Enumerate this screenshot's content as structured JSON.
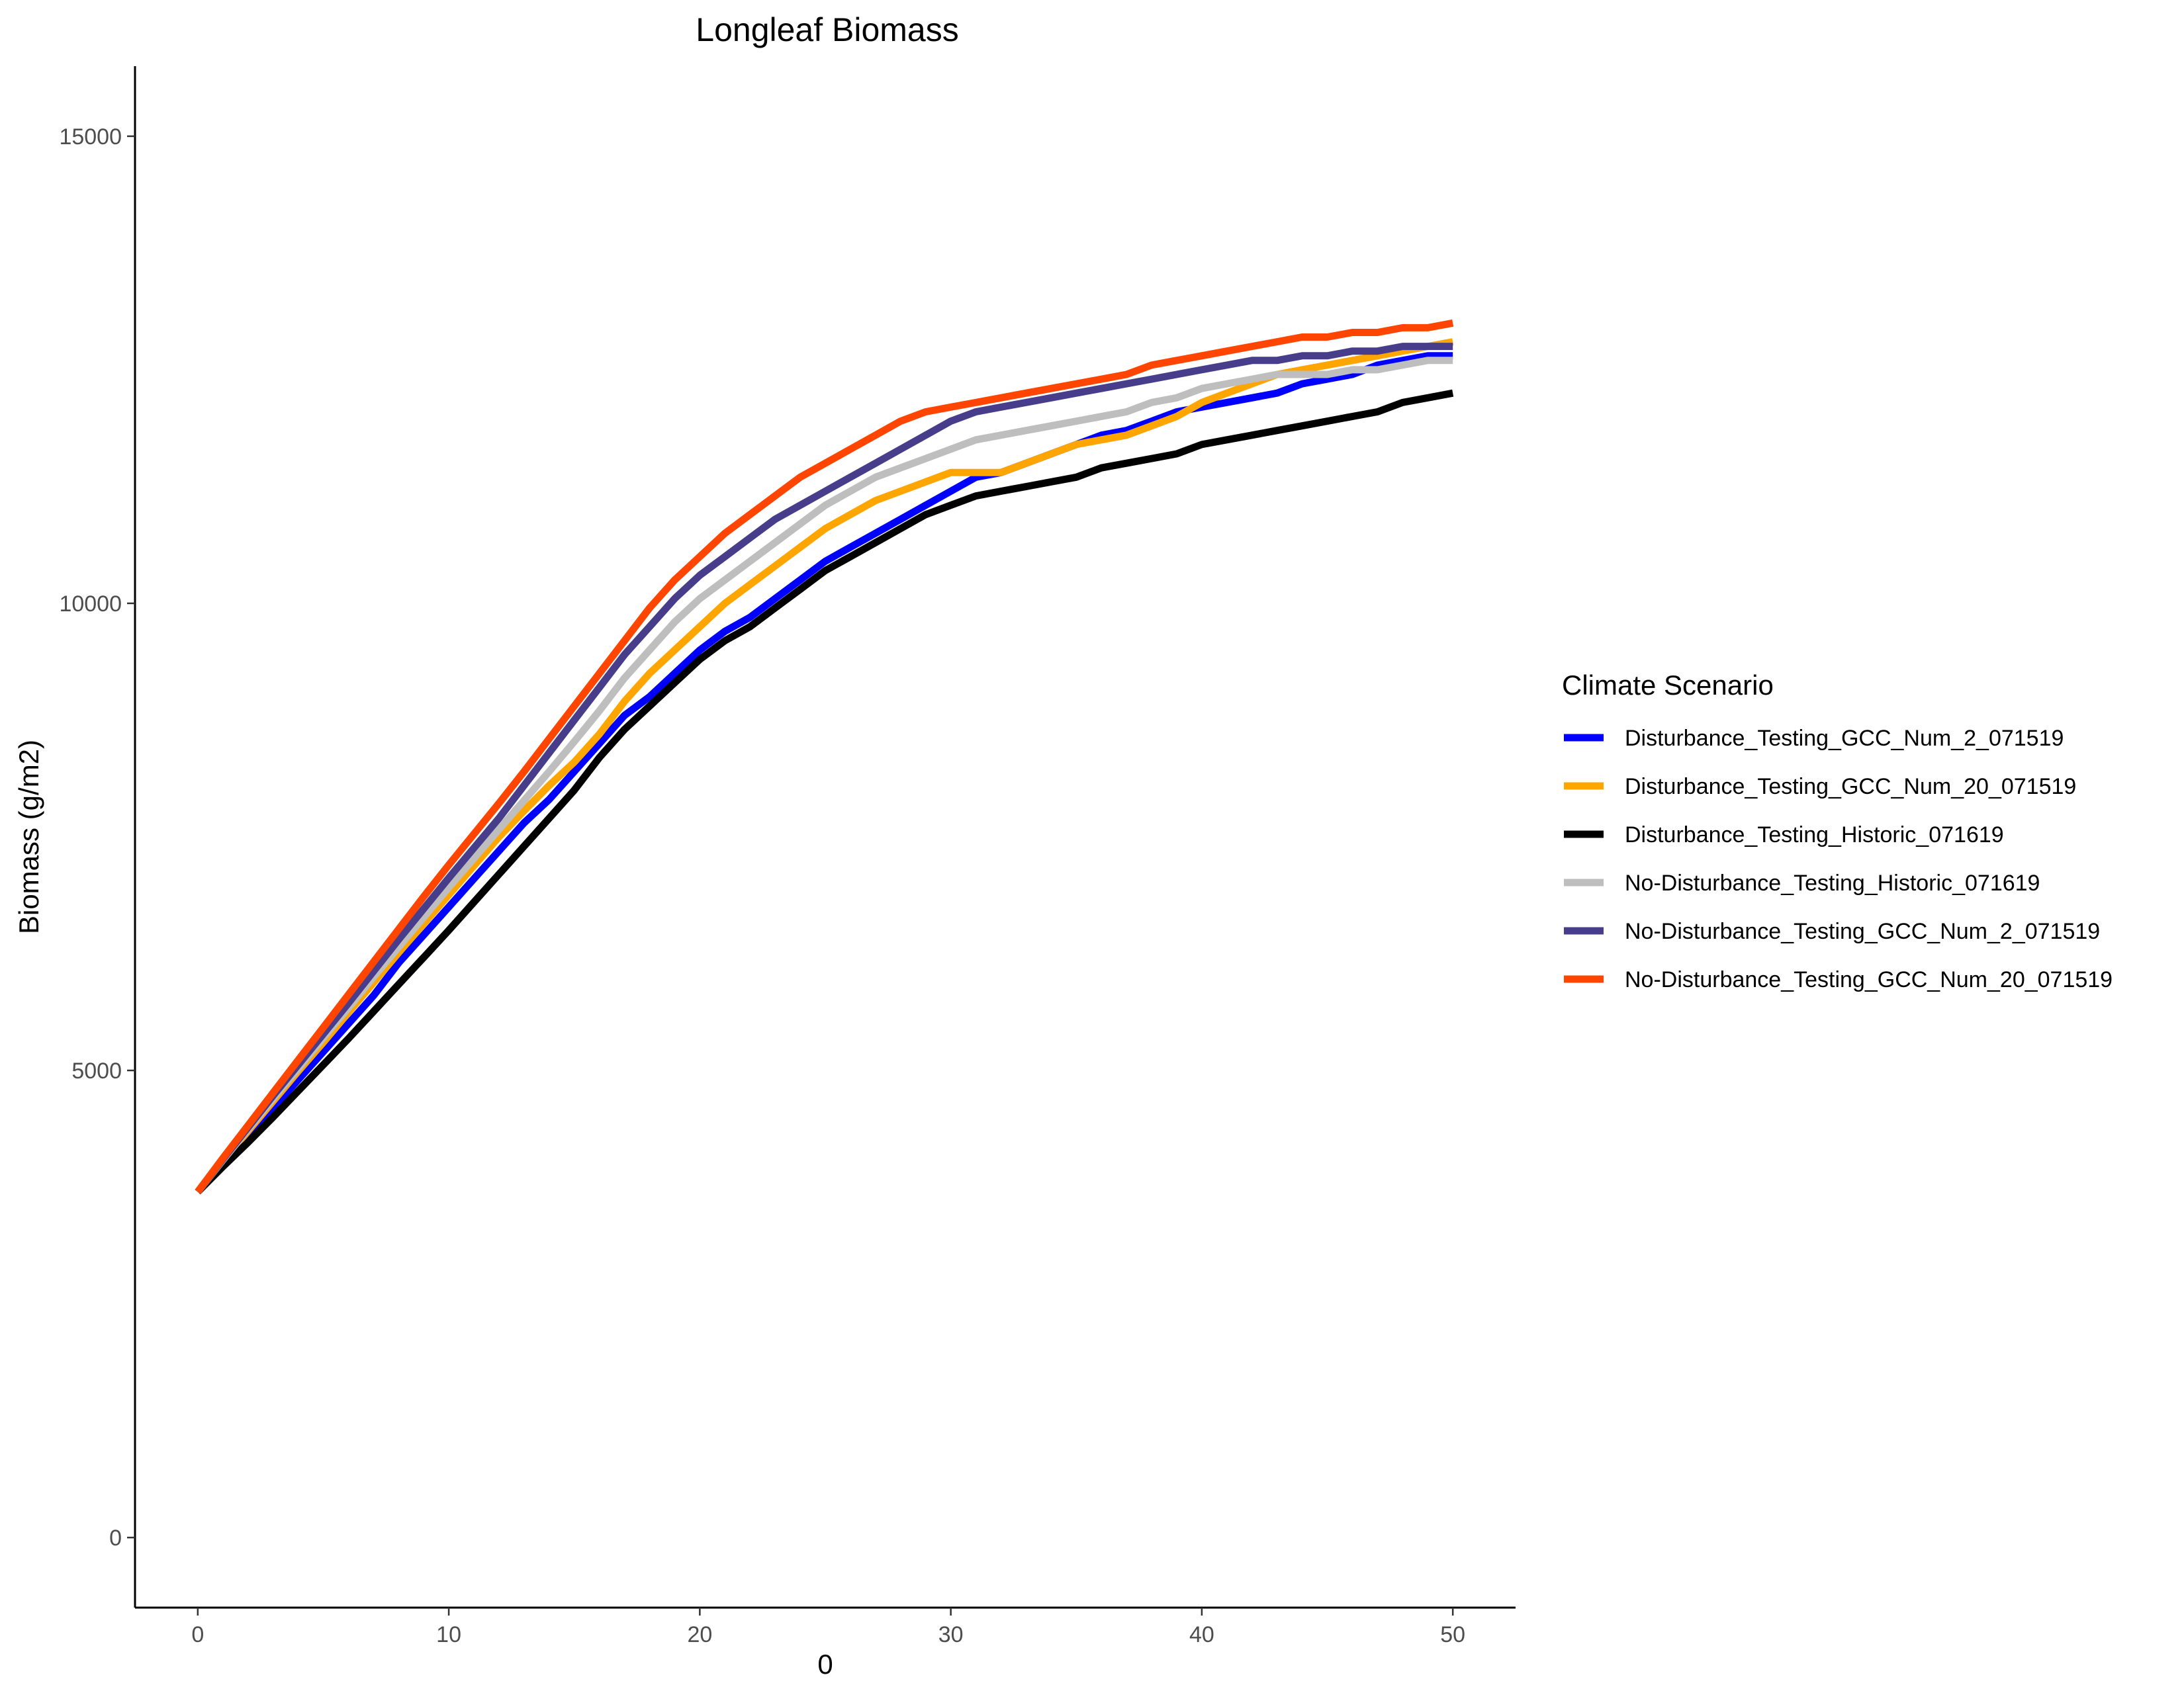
{
  "chart_data": {
    "type": "line",
    "title": "Longleaf Biomass",
    "xlabel": "0",
    "ylabel": "Biomass (g/m2)",
    "xlim": [
      -2.5,
      52.5
    ],
    "ylim": [
      -750,
      15750
    ],
    "xticks": [
      0,
      10,
      20,
      30,
      40,
      50
    ],
    "yticks": [
      0,
      5000,
      10000,
      15000
    ],
    "grid": false,
    "legend": {
      "title": "Climate Scenario",
      "position": "right"
    },
    "x": [
      0,
      1,
      2,
      3,
      4,
      5,
      6,
      7,
      8,
      9,
      10,
      11,
      12,
      13,
      14,
      15,
      16,
      17,
      18,
      19,
      20,
      21,
      22,
      23,
      24,
      25,
      26,
      27,
      28,
      29,
      30,
      31,
      32,
      33,
      34,
      35,
      36,
      37,
      38,
      39,
      40,
      41,
      42,
      43,
      44,
      45,
      46,
      47,
      48,
      49,
      50
    ],
    "series": [
      {
        "name": "Disturbance_Testing_GCC_Num_2_071519",
        "color": "#0000FF",
        "values": [
          3700,
          4000,
          4300,
          4600,
          4900,
          5200,
          5500,
          5800,
          6150,
          6450,
          6750,
          7050,
          7350,
          7650,
          7900,
          8200,
          8500,
          8800,
          9000,
          9250,
          9500,
          9700,
          9850,
          10050,
          10250,
          10450,
          10600,
          10750,
          10900,
          11050,
          11200,
          11350,
          11400,
          11500,
          11600,
          11700,
          11800,
          11850,
          11950,
          12050,
          12100,
          12150,
          12200,
          12250,
          12350,
          12400,
          12450,
          12550,
          12600,
          12650,
          12650
        ]
      },
      {
        "name": "Disturbance_Testing_GCC_Num_20_071519",
        "color": "#FFA500",
        "values": [
          3700,
          4030,
          4350,
          4670,
          4990,
          5300,
          5620,
          5940,
          6260,
          6570,
          6880,
          7190,
          7500,
          7780,
          8050,
          8300,
          8600,
          8950,
          9250,
          9500,
          9750,
          10000,
          10200,
          10400,
          10600,
          10800,
          10950,
          11100,
          11200,
          11300,
          11400,
          11400,
          11400,
          11500,
          11600,
          11700,
          11750,
          11800,
          11900,
          12000,
          12150,
          12250,
          12350,
          12450,
          12500,
          12550,
          12600,
          12650,
          12700,
          12750,
          12800
        ]
      },
      {
        "name": "Disturbance_Testing_Historic_071619",
        "color": "#000000",
        "values": [
          3700,
          3970,
          4230,
          4500,
          4780,
          5060,
          5340,
          5630,
          5920,
          6210,
          6500,
          6800,
          7100,
          7400,
          7700,
          8000,
          8350,
          8650,
          8900,
          9150,
          9400,
          9600,
          9750,
          9950,
          10150,
          10350,
          10500,
          10650,
          10800,
          10950,
          11050,
          11150,
          11200,
          11250,
          11300,
          11350,
          11450,
          11500,
          11550,
          11600,
          11700,
          11750,
          11800,
          11850,
          11900,
          11950,
          12000,
          12050,
          12150,
          12200,
          12250
        ]
      },
      {
        "name": "No-Disturbance_Testing_Historic_071619",
        "color": "#BEBEBE",
        "values": [
          3700,
          4040,
          4370,
          4700,
          5020,
          5350,
          5670,
          6000,
          6320,
          6640,
          6960,
          7270,
          7580,
          7890,
          8200,
          8520,
          8850,
          9200,
          9500,
          9800,
          10050,
          10250,
          10450,
          10650,
          10850,
          11050,
          11200,
          11350,
          11450,
          11550,
          11650,
          11750,
          11800,
          11850,
          11900,
          11950,
          12000,
          12050,
          12150,
          12200,
          12300,
          12350,
          12400,
          12450,
          12450,
          12450,
          12500,
          12500,
          12550,
          12600,
          12600
        ]
      },
      {
        "name": "No-Disturbance_Testing_GCC_Num_2_071519",
        "color": "#483D8B",
        "values": [
          3700,
          4050,
          4390,
          4730,
          5060,
          5390,
          5720,
          6060,
          6400,
          6730,
          7060,
          7380,
          7700,
          8050,
          8400,
          8750,
          9100,
          9450,
          9750,
          10050,
          10300,
          10500,
          10700,
          10900,
          11050,
          11200,
          11350,
          11500,
          11650,
          11800,
          11950,
          12050,
          12100,
          12150,
          12200,
          12250,
          12300,
          12350,
          12400,
          12450,
          12500,
          12550,
          12600,
          12600,
          12650,
          12650,
          12700,
          12700,
          12750,
          12750,
          12750
        ]
      },
      {
        "name": "No-Disturbance_Testing_GCC_Num_20_071519",
        "color": "#FF4500",
        "values": [
          3700,
          4060,
          4410,
          4760,
          5110,
          5460,
          5810,
          6160,
          6510,
          6860,
          7200,
          7530,
          7860,
          8200,
          8550,
          8900,
          9250,
          9600,
          9950,
          10250,
          10500,
          10750,
          10950,
          11150,
          11350,
          11500,
          11650,
          11800,
          11950,
          12050,
          12100,
          12150,
          12200,
          12250,
          12300,
          12350,
          12400,
          12450,
          12550,
          12600,
          12650,
          12700,
          12750,
          12800,
          12850,
          12850,
          12900,
          12900,
          12950,
          12950,
          13000
        ]
      }
    ]
  }
}
